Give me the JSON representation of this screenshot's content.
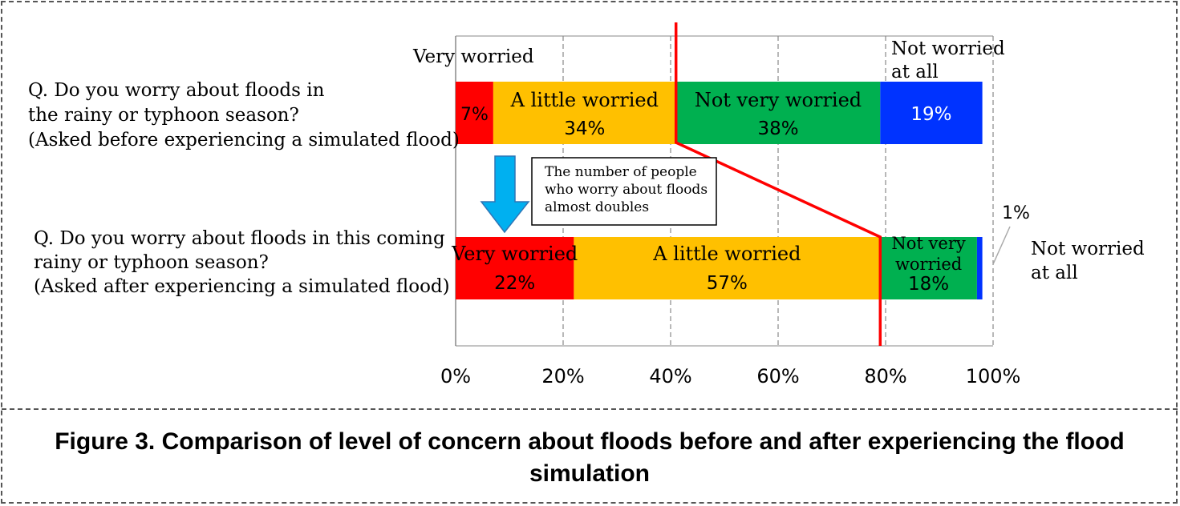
{
  "chart_data": {
    "type": "bar",
    "orientation": "horizontal",
    "stacked": true,
    "categories": [
      [
        "Q. Do you worry about floods in",
        " the rainy or typhoon season?",
        "(Asked before experiencing a simulated flood)"
      ],
      [
        "Q. Do you worry about floods in this coming",
        "rainy or typhoon season?",
        "(Asked after experiencing a simulated flood)"
      ]
    ],
    "series": [
      {
        "key": "very_worried",
        "color": "#FF0000",
        "values": [
          7,
          22
        ],
        "labels": [
          "7%",
          "22%"
        ]
      },
      {
        "key": "a_little_worried",
        "color": "#FFC000",
        "values": [
          34,
          57
        ],
        "labels": [
          "34%",
          "57%"
        ]
      },
      {
        "key": "not_very_worried",
        "color": "#00B050",
        "values": [
          38,
          18
        ],
        "labels": [
          "38%",
          "18%"
        ]
      },
      {
        "key": "not_worried_at_all",
        "color": "#0033FF",
        "values": [
          19,
          1
        ],
        "labels": [
          "19%",
          "1%"
        ]
      }
    ],
    "segment_text": {
      "bar1_yellow": "A little worried",
      "bar1_green": "Not very worried",
      "bar2_red": "Very worried",
      "bar2_yellow": "A little worried",
      "bar2_green": [
        "Not very",
        "worried"
      ]
    },
    "outside_labels": {
      "very_worried_top": "Very worried",
      "not_worried_top": [
        "Not worried",
        "at all"
      ],
      "one_percent": "1%",
      "not_worried_bottom": [
        "Not worried",
        "at all"
      ]
    },
    "x_ticks": [
      "0%",
      "20%",
      "40%",
      "60%",
      "80%",
      "100%"
    ],
    "xlim": [
      0,
      100
    ],
    "grid": "vertical-dashed",
    "annotation": [
      "The number of people",
      "who worry about floods",
      "almost doubles"
    ],
    "colors": {
      "trend_line": "#FF0000",
      "arrow": "#00B0F0"
    }
  },
  "caption": "Figure 3. Comparison of level of concern about floods before and after experiencing the flood simulation"
}
